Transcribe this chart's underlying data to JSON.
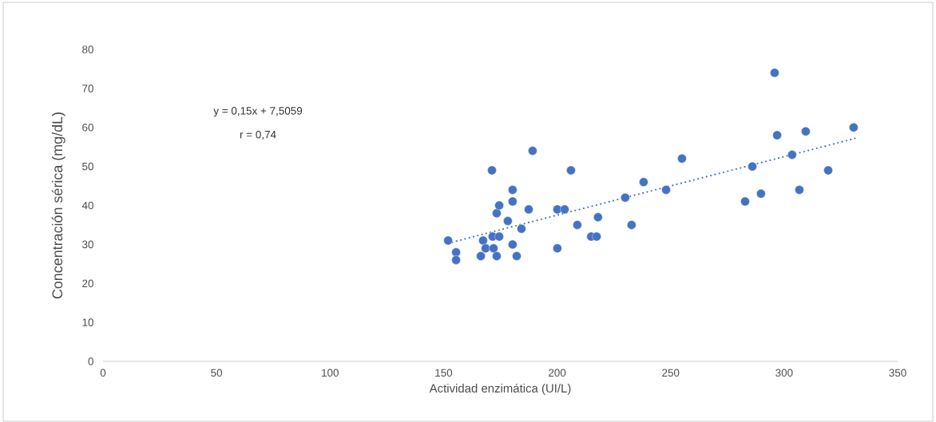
{
  "chart_data": {
    "type": "scatter",
    "xlabel": "Actividad enzimática (UI/L)",
    "ylabel": "Concentración sérica (mg/dL)",
    "annotations": [
      "y = 0,15x + 7,5059",
      "r = 0,74"
    ],
    "xlim": [
      0,
      350
    ],
    "xticks": [
      0,
      50,
      100,
      150,
      200,
      250,
      300,
      350
    ],
    "ylim": [
      0,
      80
    ],
    "yticks": [
      0,
      10,
      20,
      30,
      40,
      50,
      60,
      70,
      80
    ],
    "grid": false,
    "marker": "circle",
    "series": [
      {
        "color": "#4472c4",
        "x": [
          152,
          155.5,
          155.5,
          166.4,
          167.4,
          168.5,
          171.6,
          174.5,
          172,
          173.4,
          180.4,
          182.2,
          184.3,
          178.3,
          173.4,
          174.5,
          180.4,
          180.4,
          187.5,
          171.3,
          189.2,
          200.1,
          203.3,
          200.1,
          206.1,
          208.9,
          215,
          217.4,
          218,
          230,
          238.1,
          232.8,
          248,
          255,
          295.8,
          296.9,
          309.5,
          330.6,
          303.5,
          286,
          319.4,
          289.8,
          282.8,
          306.7
        ],
        "values": [
          31,
          28,
          26,
          27,
          31,
          29,
          32,
          32,
          29,
          27,
          30,
          27,
          34,
          36,
          38,
          40,
          41,
          44,
          39,
          49,
          54,
          39,
          39,
          29,
          49,
          35,
          32,
          32,
          37,
          42,
          46,
          35,
          44,
          52,
          74,
          58,
          59,
          60,
          53,
          50,
          49,
          43,
          41,
          44
        ]
      },
      {
        "type": "line",
        "color": "#4472c4",
        "line_style": "dotted",
        "marker": "none",
        "x": [
          152,
          332
        ],
        "values": [
          30.3,
          57.3
        ]
      }
    ]
  }
}
